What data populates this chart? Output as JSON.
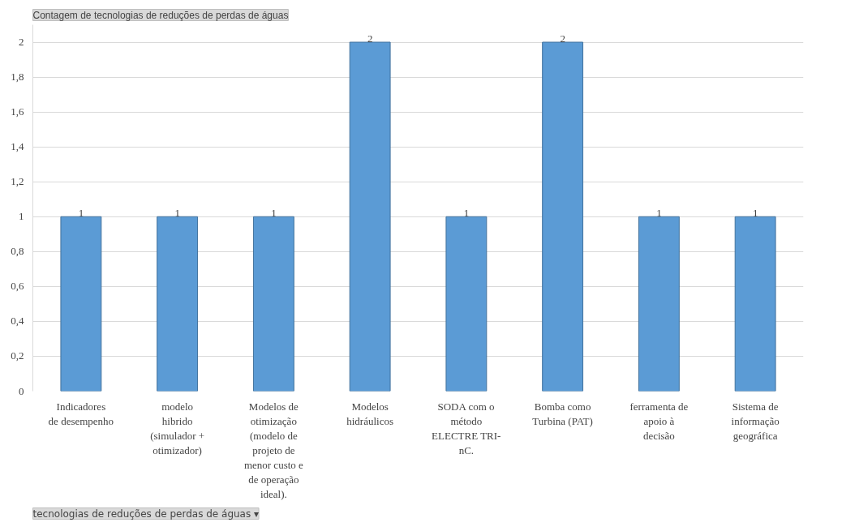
{
  "chart_data": {
    "type": "bar",
    "title": "Contagem de tecnologias de reduções de perdas de águas",
    "categories": [
      "Indicadores de desempenho",
      "modelo hibrido (simulador + otimizador)",
      "Modelos de otimização (modelo de projeto de menor custo e de operação ideal).",
      "Modelos hidráulicos",
      "SODA com o método ELECTRE TRI-nC.",
      "Bomba como Turbina (PAT)",
      "ferramenta de apoio à decisão",
      "Sistema de informação geográfica"
    ],
    "values": [
      1,
      1,
      1,
      2,
      1,
      2,
      1,
      1
    ],
    "color": "#5b9bd5",
    "data_labels": true,
    "ylim": [
      0,
      2.1
    ],
    "yticks": [
      {
        "value": 0,
        "label": "0"
      },
      {
        "value": 0.2,
        "label": "0,2"
      },
      {
        "value": 0.4,
        "label": "0,4"
      },
      {
        "value": 0.6,
        "label": "0,6"
      },
      {
        "value": 0.8,
        "label": "0,8"
      },
      {
        "value": 1,
        "label": "1"
      },
      {
        "value": 1.2,
        "label": "1,2"
      },
      {
        "value": 1.4,
        "label": "1,4"
      },
      {
        "value": 1.6,
        "label": "1,6"
      },
      {
        "value": 1.8,
        "label": "1,8"
      },
      {
        "value": 2,
        "label": "2"
      }
    ],
    "grid": "y",
    "annotations": [
      "tecnologias de reduções de perdas de águas ▾"
    ]
  }
}
